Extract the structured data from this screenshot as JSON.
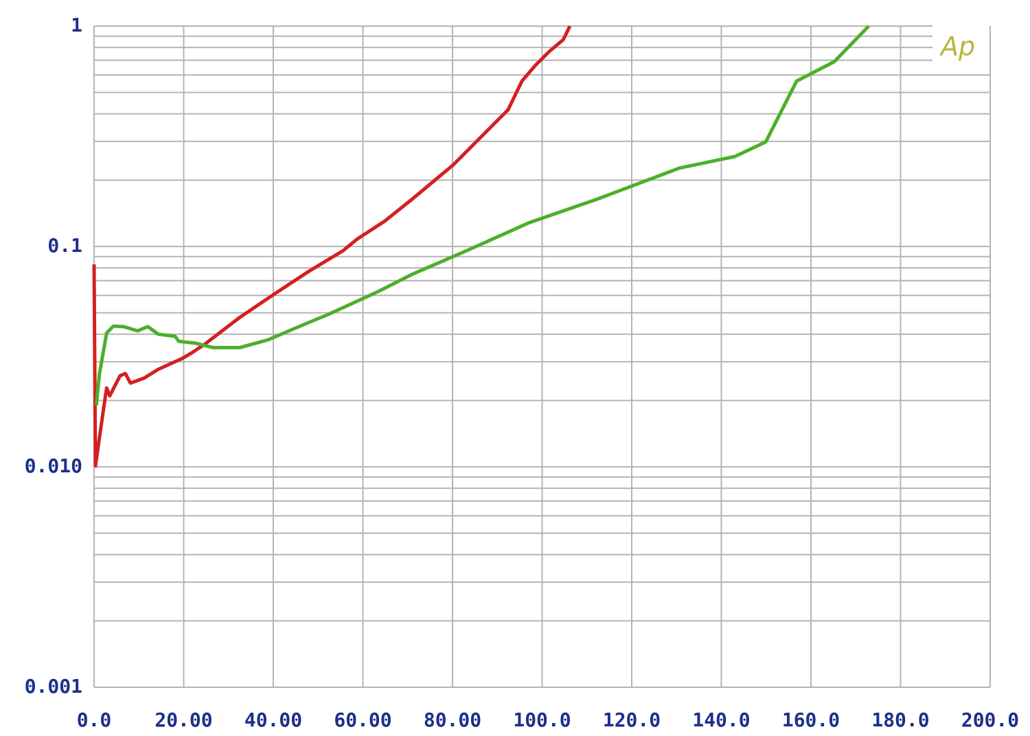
{
  "chart_data": {
    "type": "line",
    "logo": "Ap",
    "logo_color": "#b5b83a",
    "xlim": [
      0,
      200
    ],
    "ylim": [
      0.001,
      1
    ],
    "y_scale": "log",
    "grid": true,
    "xticks": [
      {
        "value": 0,
        "label": "0.0"
      },
      {
        "value": 20,
        "label": "20.00"
      },
      {
        "value": 40,
        "label": "40.00"
      },
      {
        "value": 60,
        "label": "60.00"
      },
      {
        "value": 80,
        "label": "80.00"
      },
      {
        "value": 100,
        "label": "100.0"
      },
      {
        "value": 120,
        "label": "120.0"
      },
      {
        "value": 140,
        "label": "140.0"
      },
      {
        "value": 160,
        "label": "160.0"
      },
      {
        "value": 180,
        "label": "180.0"
      },
      {
        "value": 200,
        "label": "200.0"
      }
    ],
    "yticks": [
      0.001,
      {
        "value": 0.01,
        "label": "0.010"
      },
      0.1,
      1
    ],
    "y_minor_ticks": [
      0.002,
      0.003,
      0.004,
      0.005,
      0.006,
      0.007,
      0.008,
      0.009,
      0.02,
      0.03,
      0.04,
      0.05,
      0.06,
      0.07,
      0.08,
      0.09,
      0.2,
      0.3,
      0.4,
      0.5,
      0.6,
      0.7,
      0.8,
      0.9
    ],
    "series": [
      {
        "color": "#d42020",
        "x": [
          0,
          0.3,
          2,
          2.8,
          3.5,
          5.8,
          7,
          8.1,
          11.2,
          14.3,
          19.6,
          21.9,
          25,
          32.6,
          40.3,
          48,
          55.6,
          58.7,
          64.8,
          71,
          80.2,
          86.3,
          92.4,
          95.5,
          98.5,
          101.6,
          104.7,
          106.2
        ],
        "values": [
          0.083,
          0.0101,
          0.0177,
          0.0228,
          0.021,
          0.0259,
          0.0265,
          0.024,
          0.0253,
          0.0277,
          0.031,
          0.033,
          0.0364,
          0.0478,
          0.061,
          0.0773,
          0.0958,
          0.108,
          0.13,
          0.164,
          0.235,
          0.313,
          0.417,
          0.563,
          0.664,
          0.767,
          0.867,
          1.0
        ]
      },
      {
        "color": "#4caf2a",
        "x": [
          0.5,
          1.2,
          2.8,
          4.3,
          6.6,
          9.7,
          12,
          14.3,
          18.1,
          18.9,
          22.7,
          26.5,
          32.6,
          38.8,
          44.9,
          52.6,
          63.3,
          71,
          83.2,
          97,
          112.3,
          130.7,
          143,
          149.9,
          156.8,
          165.2,
          172.9
        ],
        "values": [
          0.019,
          0.0264,
          0.0405,
          0.0435,
          0.0433,
          0.0414,
          0.0433,
          0.04,
          0.0391,
          0.0371,
          0.0364,
          0.0348,
          0.0348,
          0.0377,
          0.0426,
          0.0495,
          0.0623,
          0.0748,
          0.0958,
          0.128,
          0.164,
          0.227,
          0.256,
          0.298,
          0.563,
          0.689,
          1.0
        ]
      }
    ]
  }
}
